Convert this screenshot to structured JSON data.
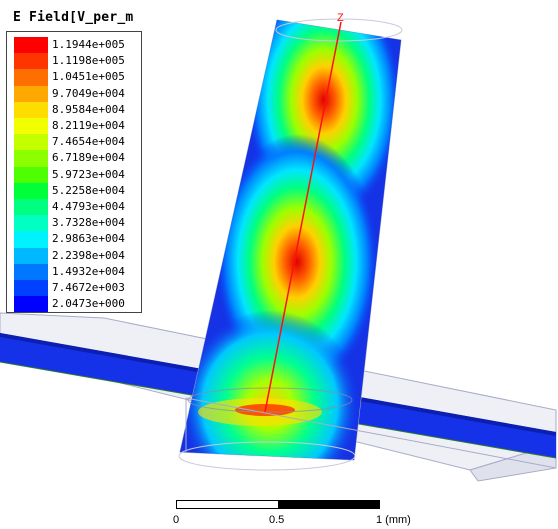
{
  "legend": {
    "title": "E Field[V_per_m",
    "entries": [
      {
        "label": "1.1944e+005",
        "color": "#ff0000"
      },
      {
        "label": "1.1198e+005",
        "color": "#ff3500"
      },
      {
        "label": "1.0451e+005",
        "color": "#ff6e00"
      },
      {
        "label": "9.7049e+004",
        "color": "#ffa800"
      },
      {
        "label": "8.9584e+004",
        "color": "#ffdd00"
      },
      {
        "label": "8.2119e+004",
        "color": "#f2ff00"
      },
      {
        "label": "7.4654e+004",
        "color": "#c4ff00"
      },
      {
        "label": "6.7189e+004",
        "color": "#8cff00"
      },
      {
        "label": "5.9723e+004",
        "color": "#4dff00"
      },
      {
        "label": "5.2258e+004",
        "color": "#00ff38"
      },
      {
        "label": "4.4793e+004",
        "color": "#00ff80"
      },
      {
        "label": "3.7328e+004",
        "color": "#00ffc0"
      },
      {
        "label": "2.9863e+004",
        "color": "#00f2ff"
      },
      {
        "label": "2.2398e+004",
        "color": "#00b8ff"
      },
      {
        "label": "1.4932e+004",
        "color": "#0077ff"
      },
      {
        "label": "7.4672e+003",
        "color": "#0040ff"
      },
      {
        "label": "2.0473e+000",
        "color": "#0000ff"
      }
    ]
  },
  "axis": {
    "z_label": "Z"
  },
  "scalebar": {
    "ticks": [
      "0",
      "0.5",
      "1 (mm)"
    ]
  }
}
